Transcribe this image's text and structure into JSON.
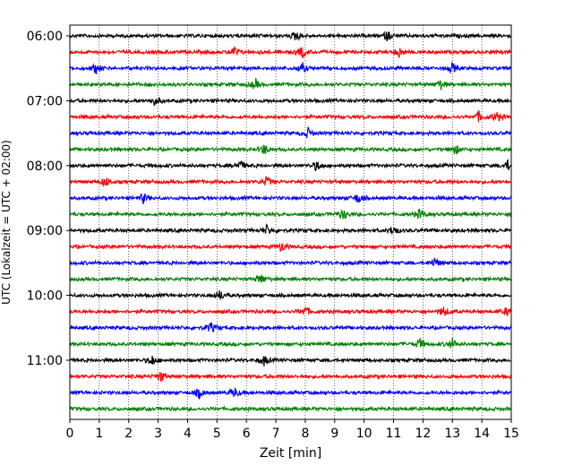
{
  "chart_data": {
    "type": "line",
    "title": "",
    "xlabel": "Zeit  [min]",
    "ylabel": "UTC (Lokalzeit = UTC + 02:00)",
    "xlim": [
      0,
      15
    ],
    "x_ticks": [
      "0",
      "1",
      "2",
      "3",
      "4",
      "5",
      "6",
      "7",
      "8",
      "9",
      "10",
      "11",
      "12",
      "13",
      "14",
      "15"
    ],
    "y_ticks": [
      {
        "label": "06:00",
        "row": 0
      },
      {
        "label": "07:00",
        "row": 4
      },
      {
        "label": "08:00",
        "row": 8
      },
      {
        "label": "09:00",
        "row": 12
      },
      {
        "label": "10:00",
        "row": 16
      },
      {
        "label": "11:00",
        "row": 20
      }
    ],
    "grid": "vertical dotted",
    "trace_interval_minutes": 15,
    "color_cycle": [
      "#000000",
      "#ff0000",
      "#0000ff",
      "#008000"
    ],
    "traces": [
      {
        "start": "06:00",
        "color": "#000000",
        "events_min": [
          7.7,
          10.8
        ]
      },
      {
        "start": "06:15",
        "color": "#ff0000",
        "events_min": [
          5.6,
          7.9,
          11.2
        ]
      },
      {
        "start": "06:30",
        "color": "#0000ff",
        "events_min": [
          0.9,
          7.9,
          13.0
        ]
      },
      {
        "start": "06:45",
        "color": "#008000",
        "events_min": [
          6.3,
          12.6
        ]
      },
      {
        "start": "07:00",
        "color": "#000000",
        "events_min": [
          2.9
        ]
      },
      {
        "start": "07:15",
        "color": "#ff0000",
        "events_min": [
          13.9,
          14.5
        ]
      },
      {
        "start": "07:30",
        "color": "#0000ff",
        "events_min": [
          8.1
        ]
      },
      {
        "start": "07:45",
        "color": "#008000",
        "events_min": [
          6.6,
          13.1
        ]
      },
      {
        "start": "08:00",
        "color": "#000000",
        "events_min": [
          5.8,
          8.4,
          14.9
        ]
      },
      {
        "start": "08:15",
        "color": "#ff0000",
        "events_min": [
          1.2,
          6.7
        ]
      },
      {
        "start": "08:30",
        "color": "#0000ff",
        "events_min": [
          2.5,
          9.8
        ]
      },
      {
        "start": "08:45",
        "color": "#008000",
        "events_min": [
          9.3,
          11.9
        ]
      },
      {
        "start": "09:00",
        "color": "#000000",
        "events_min": [
          6.7,
          11.0
        ]
      },
      {
        "start": "09:15",
        "color": "#ff0000",
        "events_min": [
          7.2
        ]
      },
      {
        "start": "09:30",
        "color": "#0000ff",
        "events_min": [
          12.4
        ]
      },
      {
        "start": "09:45",
        "color": "#008000",
        "events_min": [
          6.5
        ]
      },
      {
        "start": "10:00",
        "color": "#000000",
        "events_min": [
          5.1
        ]
      },
      {
        "start": "10:15",
        "color": "#ff0000",
        "events_min": [
          8.0,
          12.7,
          14.9
        ]
      },
      {
        "start": "10:30",
        "color": "#0000ff",
        "events_min": [
          4.8
        ]
      },
      {
        "start": "10:45",
        "color": "#008000",
        "events_min": [
          11.9,
          13.0
        ]
      },
      {
        "start": "11:00",
        "color": "#000000",
        "events_min": [
          2.8,
          6.6
        ]
      },
      {
        "start": "11:15",
        "color": "#ff0000",
        "events_min": [
          3.1
        ]
      },
      {
        "start": "11:30",
        "color": "#0000ff",
        "events_min": [
          4.4,
          5.6
        ]
      },
      {
        "start": "11:45",
        "color": "#008000",
        "events_min": []
      }
    ]
  }
}
